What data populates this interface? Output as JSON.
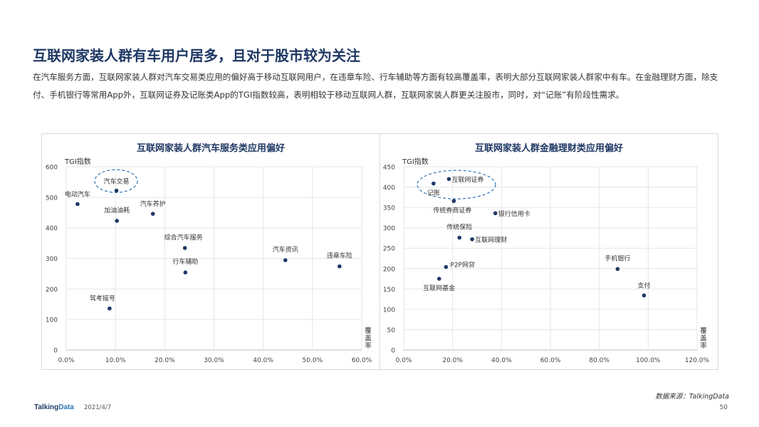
{
  "page": {
    "title": "互联网家装人群有车用户居多，且对于股市较为关注",
    "description": "在汽车服务方面，互联网家装人群对汽车交易类应用的偏好高于移动互联网用户，在违章车险、行车辅助等方面有较高覆盖率，表明大部分互联网家装人群家中有车。在金融理财方面，除支付、手机银行等常用App外，互联网证券及记账类App的TGI指数较高，表明相较于移动互联网人群，互联网家装人群更关注股市，同时，对“记账”有阶段性需求。",
    "source": "数据来源：TalkingData",
    "logo_a": "Talking",
    "logo_b": "Data",
    "date": "2021/4/7",
    "page_number": "50"
  },
  "colors": {
    "point": "#1f3864",
    "ellipse": "#2e75b6",
    "grid": "#e6e6e6",
    "title": "#1f3864"
  },
  "chart_data": [
    {
      "type": "scatter",
      "title": "互联网家装人群汽车服务类应用偏好",
      "ylabel": "TGI指数",
      "xlabel": "覆盖率",
      "xlim": [
        0,
        60
      ],
      "ylim": [
        0,
        600
      ],
      "x_ticks": [
        0,
        10,
        20,
        30,
        40,
        50,
        60
      ],
      "y_ticks": [
        0,
        100,
        200,
        300,
        400,
        500,
        600
      ],
      "x_tick_labels": [
        "0.0%",
        "10.0%",
        "20.0%",
        "30.0%",
        "40.0%",
        "50.0%",
        "60.0%"
      ],
      "y_tick_labels": [
        "0",
        "100",
        "200",
        "300",
        "400",
        "500",
        "600"
      ],
      "grid": true,
      "highlight": "汽车交易",
      "points": [
        {
          "label": "汽车交易",
          "x": 10.2,
          "y": 522
        },
        {
          "label": "电动汽车",
          "x": 2.3,
          "y": 478
        },
        {
          "label": "汽车养护",
          "x": 17.6,
          "y": 446
        },
        {
          "label": "加油油耗",
          "x": 10.3,
          "y": 423
        },
        {
          "label": "综合汽车服务",
          "x": 24.1,
          "y": 334
        },
        {
          "label": "汽车资讯",
          "x": 44.5,
          "y": 294
        },
        {
          "label": "违章车险",
          "x": 55.5,
          "y": 274
        },
        {
          "label": "行车辅助",
          "x": 24.2,
          "y": 254
        },
        {
          "label": "驾考摇号",
          "x": 8.8,
          "y": 136
        }
      ]
    },
    {
      "type": "scatter",
      "title": "互联网家装人群金融理财类应用偏好",
      "ylabel": "TGI指数",
      "xlabel": "覆盖率",
      "xlim": [
        0,
        120
      ],
      "ylim": [
        0,
        450
      ],
      "x_ticks": [
        0,
        20,
        40,
        60,
        80,
        100,
        120
      ],
      "y_ticks": [
        0,
        50,
        100,
        150,
        200,
        250,
        300,
        350,
        400,
        450
      ],
      "x_tick_labels": [
        "0.0%",
        "20.0%",
        "40.0%",
        "60.0%",
        "80.0%",
        "100.0%",
        "120.0%"
      ],
      "y_tick_labels": [
        "0",
        "50",
        "100",
        "150",
        "200",
        "250",
        "300",
        "350",
        "400",
        "450"
      ],
      "grid": true,
      "highlight": "互联网证券 / 记账",
      "points": [
        {
          "label": "互联网证券",
          "x": 18.5,
          "y": 420
        },
        {
          "label": "记账",
          "x": 12.2,
          "y": 409
        },
        {
          "label": "传统券商证券",
          "x": 20.5,
          "y": 366
        },
        {
          "label": "银行信用卡",
          "x": 37.5,
          "y": 336
        },
        {
          "label": "传统保险",
          "x": 22.8,
          "y": 276
        },
        {
          "label": "互联网理财",
          "x": 28,
          "y": 272
        },
        {
          "label": "P2P网贷",
          "x": 17.3,
          "y": 204
        },
        {
          "label": "互联网基金",
          "x": 14.5,
          "y": 175
        },
        {
          "label": "手机银行",
          "x": 87.5,
          "y": 199
        },
        {
          "label": "支付",
          "x": 98.3,
          "y": 134
        }
      ]
    }
  ]
}
